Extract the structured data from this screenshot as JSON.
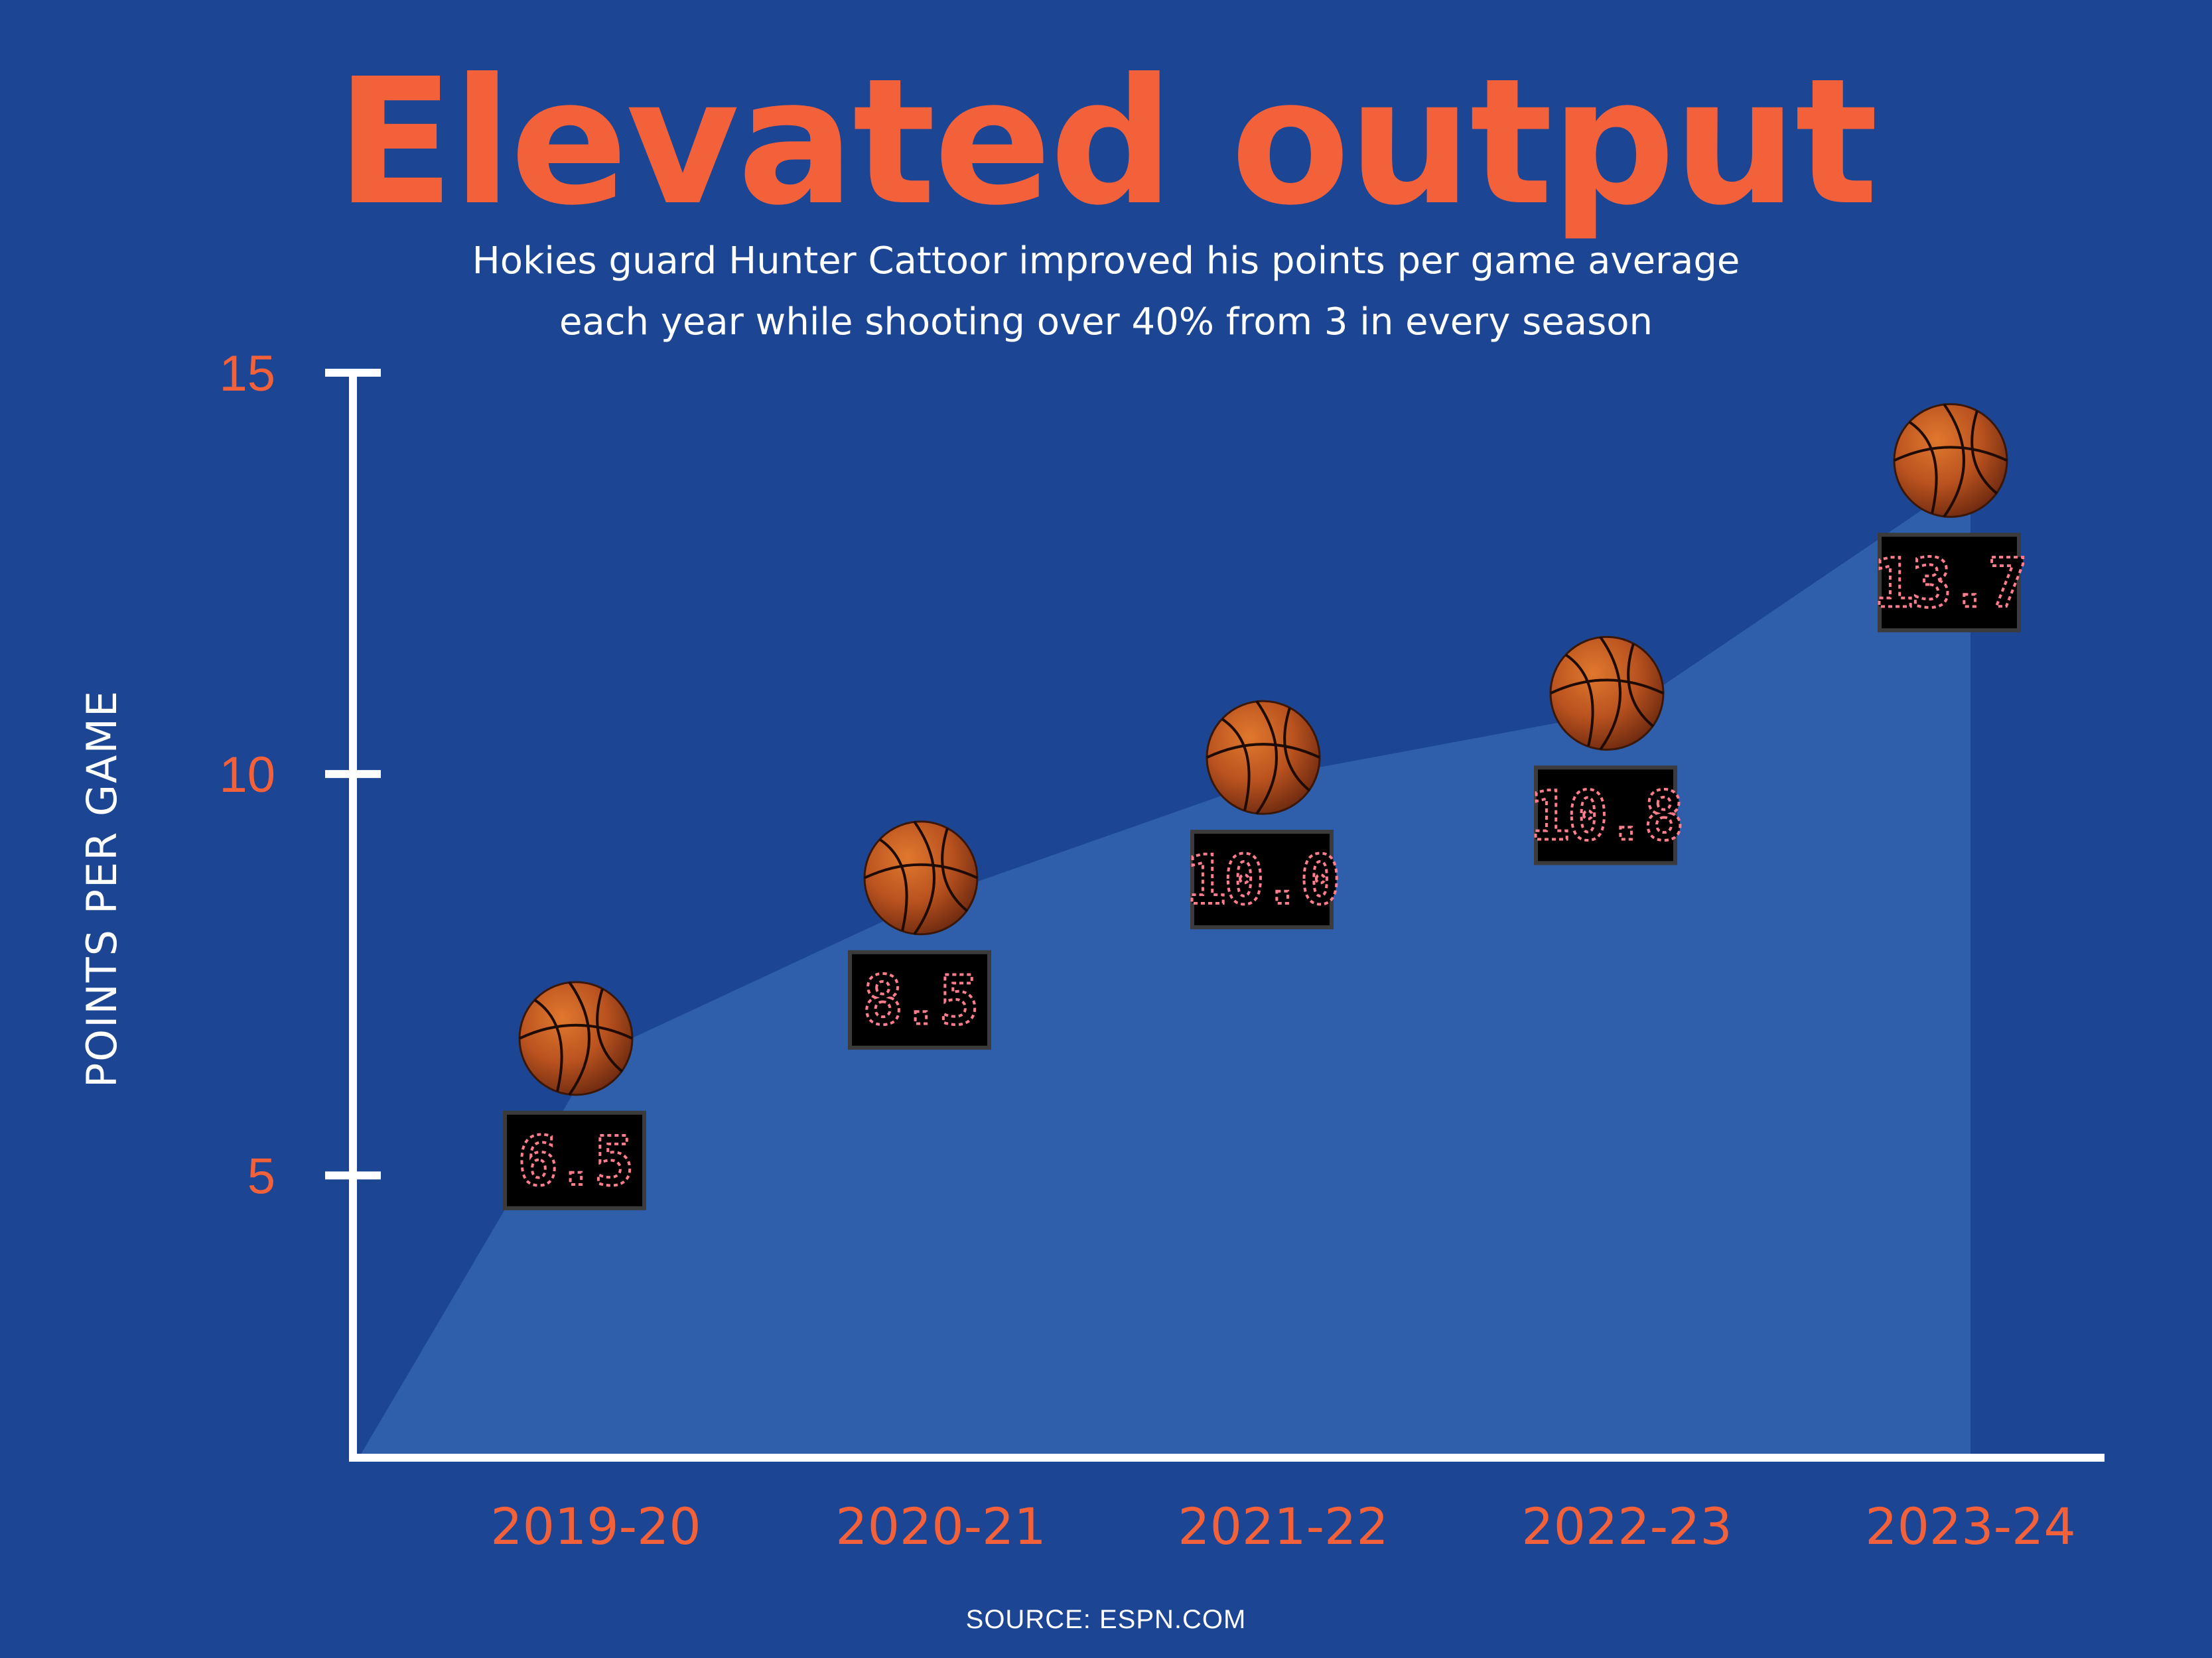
{
  "title": "Elevated output",
  "subtitle_lines": [
    "Hokies guard Hunter Cattoor improved his points per game average",
    "each year while shooting over 40% from 3 in every season"
  ],
  "source": "SOURCE: ESPN.COM",
  "colors": {
    "background": "#1c4593",
    "area": "#2f5fab",
    "accent": "#f2613a",
    "axis": "#ffffff",
    "scoreboard": "#000000",
    "digits": "#ff7d8d"
  },
  "chart_data": {
    "type": "area",
    "title": "Elevated output",
    "xlabel": "",
    "ylabel": "POINTS PER GAME",
    "ylim": [
      1.5,
      15
    ],
    "y_ticks": [
      5,
      10,
      15
    ],
    "grid": false,
    "categories": [
      "2019-20",
      "2020-21",
      "2021-22",
      "2022-23",
      "2023-24"
    ],
    "values": [
      6.5,
      8.5,
      10.0,
      10.8,
      13.7
    ],
    "value_labels": [
      "6.5",
      "8.5",
      "10.0",
      "10.8",
      "13.7"
    ],
    "annotations": "Each season's value is shown on a scoreboard below a basketball icon"
  }
}
